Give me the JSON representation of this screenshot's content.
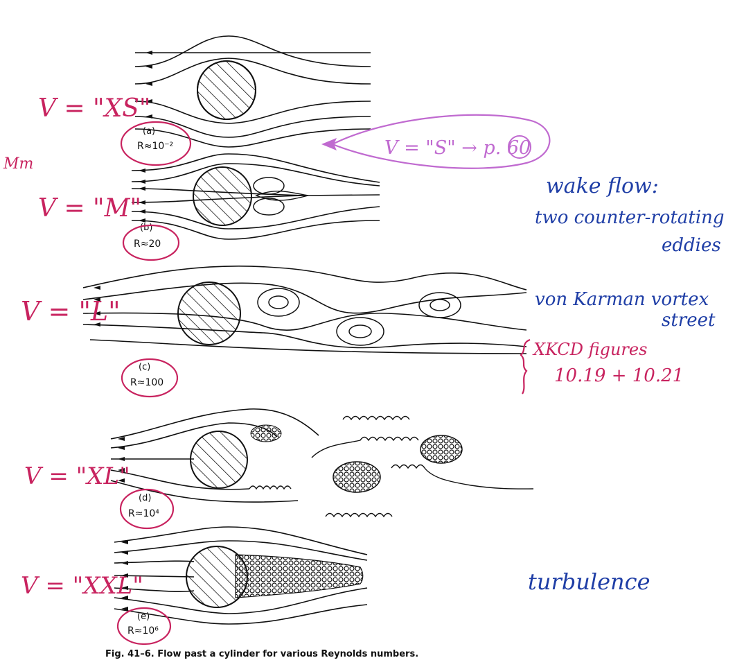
{
  "figure": {
    "caption": "Fig. 41–6.   Flow past a cylinder for various Reynolds numbers.",
    "panels": [
      {
        "id": "a",
        "letter": "(a)",
        "reynolds": "R≈10⁻²",
        "size_note": "V = \"XS\""
      },
      {
        "id": "b",
        "letter": "(b)",
        "reynolds": "R≈20",
        "size_note": "V = \"M\""
      },
      {
        "id": "c",
        "letter": "(c)",
        "reynolds": "R≈100",
        "size_note": "V = \"L\""
      },
      {
        "id": "d",
        "letter": "(d)",
        "reynolds": "R≈10⁴",
        "size_note": "V = \"XL\""
      },
      {
        "id": "e",
        "letter": "(e)",
        "reynolds": "R≈10⁶",
        "size_note": "V = \"XXL\""
      }
    ]
  },
  "annotations": {
    "bubble": "V = \"S\" → p. 60",
    "wake_flow_1": "wake flow:",
    "wake_flow_2": "two counter-rotating",
    "wake_flow_3": "eddies",
    "karman_1": "von Karman vortex",
    "karman_2": "street",
    "xkcd_1": "XKCD figures",
    "xkcd_2": "10.19 + 10.21",
    "turbulence": "turbulence",
    "scribble": "Mm"
  },
  "colors": {
    "pink_ink": "#c8235f",
    "blue_ink": "#1f3ea6",
    "violet_ink": "#c06ad0",
    "print_ink": "#111111"
  }
}
